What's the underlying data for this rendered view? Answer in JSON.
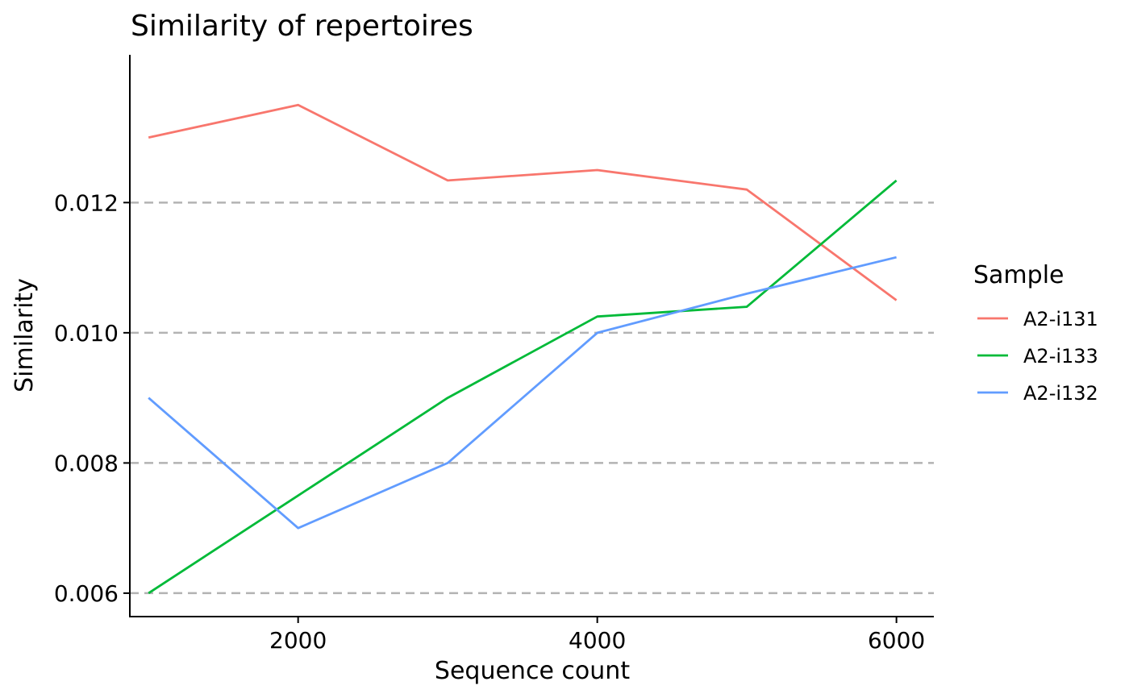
{
  "chart_data": {
    "type": "line",
    "title": "Similarity of repertoires",
    "xlabel": "Sequence count",
    "ylabel": "Similarity",
    "x": [
      1000,
      2000,
      3000,
      4000,
      5000,
      6000
    ],
    "xlim": [
      875,
      6250
    ],
    "ylim": [
      0.00564,
      0.01427
    ],
    "x_ticks": [
      2000,
      4000,
      6000
    ],
    "x_tick_labels": [
      "2000",
      "4000",
      "6000"
    ],
    "y_ticks": [
      0.006,
      0.008,
      0.01,
      0.012
    ],
    "y_tick_labels": [
      "0.006",
      "0.008",
      "0.010",
      "0.012"
    ],
    "grid": "horizontal dashed",
    "legend_title": "Sample",
    "legend_position": "right",
    "series": [
      {
        "name": "A2-i131",
        "color": "#F8766D",
        "values": [
          0.013,
          0.0135,
          0.01234,
          0.0125,
          0.0122,
          0.0105
        ]
      },
      {
        "name": "A2-i133",
        "color": "#00BA38",
        "values": [
          0.006,
          0.0075,
          0.009,
          0.01025,
          0.0104,
          0.01234
        ]
      },
      {
        "name": "A2-i132",
        "color": "#619CFF",
        "values": [
          0.009,
          0.007,
          0.008,
          0.01,
          0.0106,
          0.01116
        ]
      }
    ]
  }
}
